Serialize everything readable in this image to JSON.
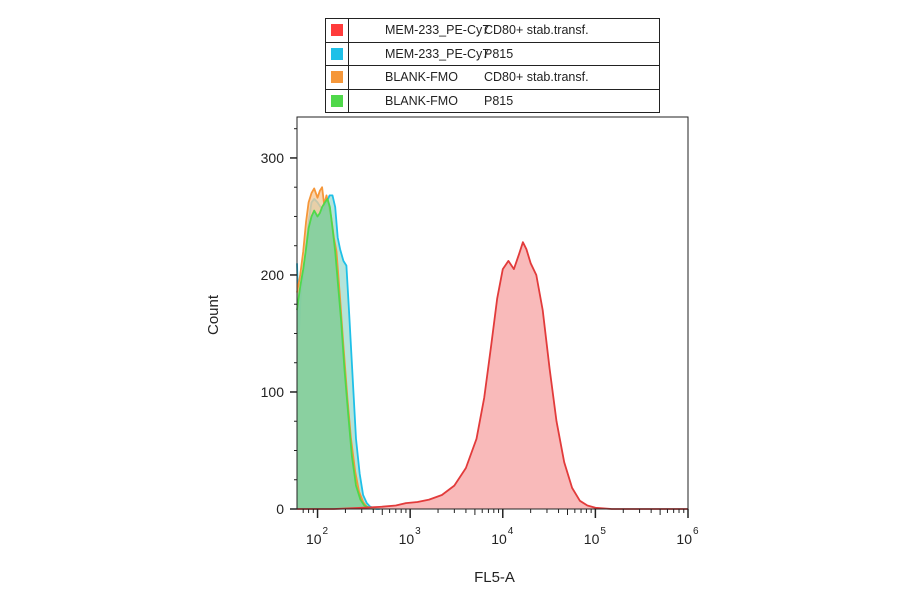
{
  "legend": [
    {
      "color": "#ff3b3b",
      "name": "MEM-233_PE-Cy7",
      "sample": "CD80+ stab.transf."
    },
    {
      "color": "#1ec0e8",
      "name": "MEM-233_PE-Cy7",
      "sample": "P815"
    },
    {
      "color": "#f5973a",
      "name": "BLANK-FMO",
      "sample": "CD80+ stab.transf."
    },
    {
      "color": "#4fd84a",
      "name": "BLANK-FMO",
      "sample": "P815"
    }
  ],
  "chart_data": {
    "type": "area",
    "xlabel": "FL5-A",
    "ylabel": "Count",
    "xscale": "log",
    "xlim": [
      60,
      1000000
    ],
    "ylim": [
      0,
      335
    ],
    "yticks": [
      0,
      100,
      200,
      300
    ],
    "xticks": [
      {
        "value": 100,
        "base": "10",
        "exp": "2"
      },
      {
        "value": 1000,
        "base": "10",
        "exp": "3"
      },
      {
        "value": 10000,
        "base": "10",
        "exp": "4"
      },
      {
        "value": 100000,
        "base": "10",
        "exp": "5"
      },
      {
        "value": 1000000,
        "base": "10",
        "exp": "6"
      }
    ],
    "series": [
      {
        "name": "MEM-233_PE-Cy7 P815",
        "color": "#1ec0e8",
        "fill": "#9fdcd0",
        "x": [
          60,
          63,
          66,
          70,
          75,
          80,
          86,
          92,
          100,
          108,
          116,
          125,
          135,
          145,
          155,
          165,
          175,
          190,
          205,
          220,
          240,
          260,
          285,
          310,
          340,
          370,
          400,
          430,
          470
        ],
        "y": [
          210,
          150,
          185,
          200,
          225,
          245,
          262,
          265,
          262,
          258,
          255,
          262,
          268,
          268,
          258,
          232,
          222,
          212,
          208,
          165,
          110,
          60,
          30,
          12,
          5,
          2,
          1,
          0,
          0
        ]
      },
      {
        "name": "BLANK-FMO CD80+ stab.transf.",
        "color": "#f5973a",
        "fill": "#f6c99a",
        "x": [
          60,
          65,
          70,
          75,
          80,
          86,
          92,
          100,
          106,
          112,
          118,
          125,
          132,
          140,
          150,
          160,
          175,
          190,
          210,
          230,
          255,
          280,
          310,
          340,
          380,
          420
        ],
        "y": [
          185,
          200,
          220,
          245,
          262,
          270,
          274,
          266,
          272,
          275,
          260,
          268,
          260,
          250,
          232,
          220,
          180,
          140,
          95,
          60,
          32,
          15,
          6,
          2,
          1,
          0
        ]
      },
      {
        "name": "BLANK-FMO P815",
        "color": "#4fd84a",
        "fill": "#6fcf9d",
        "x": [
          60,
          65,
          70,
          75,
          80,
          86,
          92,
          100,
          106,
          112,
          120,
          128,
          136,
          145,
          155,
          165,
          180,
          195,
          215,
          235,
          260,
          290,
          320,
          360,
          400
        ],
        "y": [
          170,
          190,
          205,
          222,
          240,
          250,
          255,
          250,
          253,
          258,
          262,
          265,
          258,
          240,
          220,
          195,
          160,
          120,
          80,
          45,
          20,
          8,
          3,
          1,
          0
        ]
      },
      {
        "name": "MEM-233_PE-Cy7 CD80+ stab.transf.",
        "color": "#e23b3b",
        "fill": "#f7a6a6",
        "x": [
          60,
          150,
          300,
          500,
          700,
          900,
          1200,
          1600,
          2200,
          3000,
          4000,
          5200,
          6300,
          7500,
          8700,
          10000,
          11500,
          13200,
          15000,
          16500,
          18000,
          20000,
          23000,
          27000,
          32000,
          38000,
          46000,
          56000,
          68000,
          82000,
          100000,
          150000,
          300000,
          1000000
        ],
        "y": [
          0,
          0,
          1,
          2,
          3,
          5,
          6,
          8,
          12,
          20,
          35,
          60,
          95,
          140,
          180,
          205,
          212,
          205,
          218,
          228,
          222,
          210,
          200,
          170,
          120,
          75,
          40,
          18,
          7,
          3,
          1,
          0,
          0,
          0
        ]
      }
    ]
  }
}
